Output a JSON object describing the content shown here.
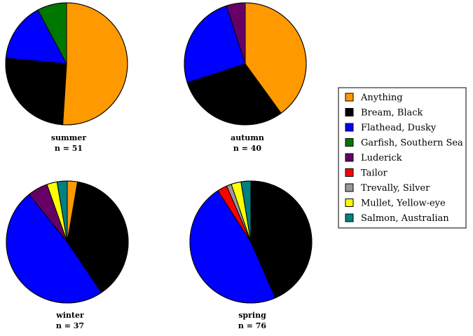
{
  "chart_data": {
    "type": "pie",
    "categories": [
      "Anything",
      "Bream, Black",
      "Flathead, Dusky",
      "Garfish, Southern Sea",
      "Luderick",
      "Tailor",
      "Trevally, Silver",
      "Mullet, Yellow-eye",
      "Salmon, Australian"
    ],
    "colors": [
      "#ff9900",
      "#000000",
      "#0000ff",
      "#007700",
      "#660066",
      "#ff0000",
      "#999999",
      "#ffff00",
      "#008080"
    ],
    "pies": [
      {
        "season": "summer",
        "n_label": "n = 51",
        "values": [
          0.51,
          0.255,
          0.157,
          0.078,
          0,
          0,
          0,
          0,
          0
        ]
      },
      {
        "season": "autumn",
        "n_label": "n = 40",
        "values": [
          0.4,
          0.3,
          0.25,
          0,
          0.05,
          0,
          0,
          0,
          0
        ]
      },
      {
        "season": "winter",
        "n_label": "n = 37",
        "values": [
          0.027,
          0.378,
          0.486,
          0,
          0.054,
          0,
          0,
          0.027,
          0.027
        ]
      },
      {
        "season": "spring",
        "n_label": "n = 76",
        "values": [
          0,
          0.434,
          0.474,
          0,
          0,
          0.026,
          0.013,
          0.026,
          0.026
        ]
      }
    ],
    "start_angle_deg": 0,
    "direction": "clockwise",
    "legend_position": "right"
  }
}
